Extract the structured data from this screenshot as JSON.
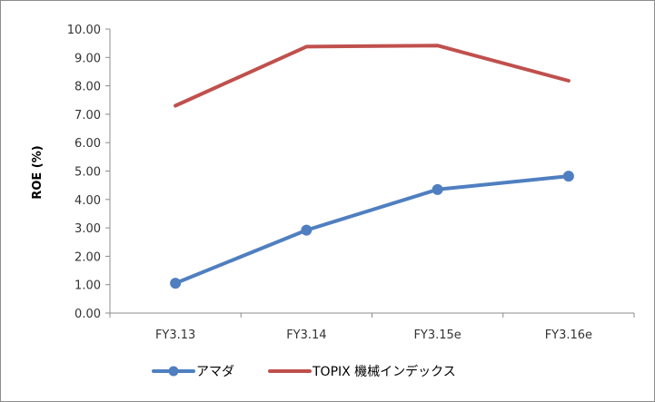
{
  "chart_data": {
    "type": "line",
    "categories": [
      "FY3.13",
      "FY3.14",
      "FY3.15e",
      "FY3.16e"
    ],
    "series": [
      {
        "name": "アマダ",
        "values": [
          1.05,
          2.92,
          4.35,
          4.82
        ],
        "color": "#4f7fc0",
        "markers": true
      },
      {
        "name": "TOPIX 機械インデックス",
        "values": [
          7.3,
          9.38,
          9.42,
          8.18
        ],
        "color": "#c0504d",
        "markers": false
      }
    ],
    "title": "",
    "xlabel": "",
    "ylabel": "ROE (%)",
    "ylim": [
      0,
      10
    ],
    "yticks": [
      "0.00",
      "1.00",
      "2.00",
      "3.00",
      "4.00",
      "5.00",
      "6.00",
      "7.00",
      "8.00",
      "9.00",
      "10.00"
    ],
    "grid": false,
    "legend_position": "bottom"
  }
}
